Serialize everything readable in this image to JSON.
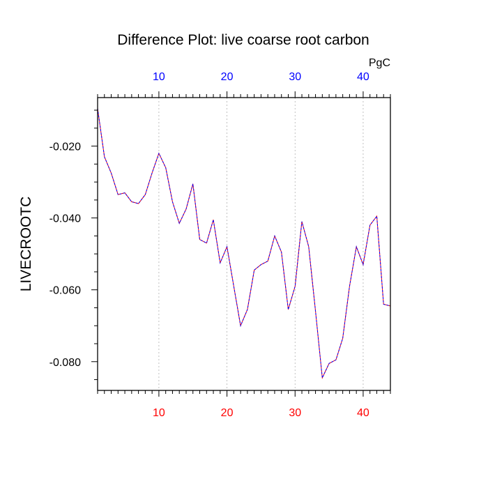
{
  "chart_data": {
    "type": "line",
    "title": "Difference Plot: live coarse root carbon",
    "units": "PgC",
    "ylabel": "LIVECROOTC",
    "xlim": [
      1,
      44
    ],
    "ylim": [
      -0.088,
      -0.0065
    ],
    "x_ticks": [
      10,
      20,
      30,
      40
    ],
    "x_tick_labels": [
      "10",
      "20",
      "30",
      "40"
    ],
    "y_ticks": [
      -0.02,
      -0.04,
      -0.06,
      -0.08
    ],
    "y_tick_labels": [
      "-0.020",
      "-0.040",
      "-0.060",
      "-0.080"
    ],
    "grid": "vertical dotted at major x ticks",
    "colors": {
      "top_axis_labels": "#0000ff",
      "bottom_axis_labels": "#ff0000",
      "series_line_a": "#ff0000",
      "series_line_b": "#0000ff",
      "grid": "#b0b0b0"
    },
    "series": [
      {
        "x": [
          1,
          2,
          3,
          4,
          5,
          6,
          7,
          8,
          9,
          10,
          11,
          12,
          13,
          14,
          15,
          16,
          17,
          18,
          19,
          20,
          21,
          22,
          23,
          24,
          25,
          26,
          27,
          28,
          29,
          30,
          31,
          32,
          33,
          34,
          35,
          36,
          37,
          38,
          39,
          40,
          41,
          42,
          43,
          44
        ],
        "values": [
          -0.0095,
          -0.023,
          -0.0275,
          -0.0335,
          -0.033,
          -0.0355,
          -0.036,
          -0.0335,
          -0.0275,
          -0.022,
          -0.026,
          -0.0355,
          -0.0415,
          -0.0375,
          -0.0305,
          -0.046,
          -0.047,
          -0.0405,
          -0.0525,
          -0.048,
          -0.059,
          -0.07,
          -0.0655,
          -0.0545,
          -0.053,
          -0.052,
          -0.045,
          -0.0495,
          -0.0655,
          -0.059,
          -0.041,
          -0.048,
          -0.066,
          -0.0845,
          -0.0805,
          -0.0795,
          -0.0735,
          -0.059,
          -0.048,
          -0.053,
          -0.042,
          -0.0395,
          -0.064,
          -0.0645
        ]
      }
    ]
  }
}
